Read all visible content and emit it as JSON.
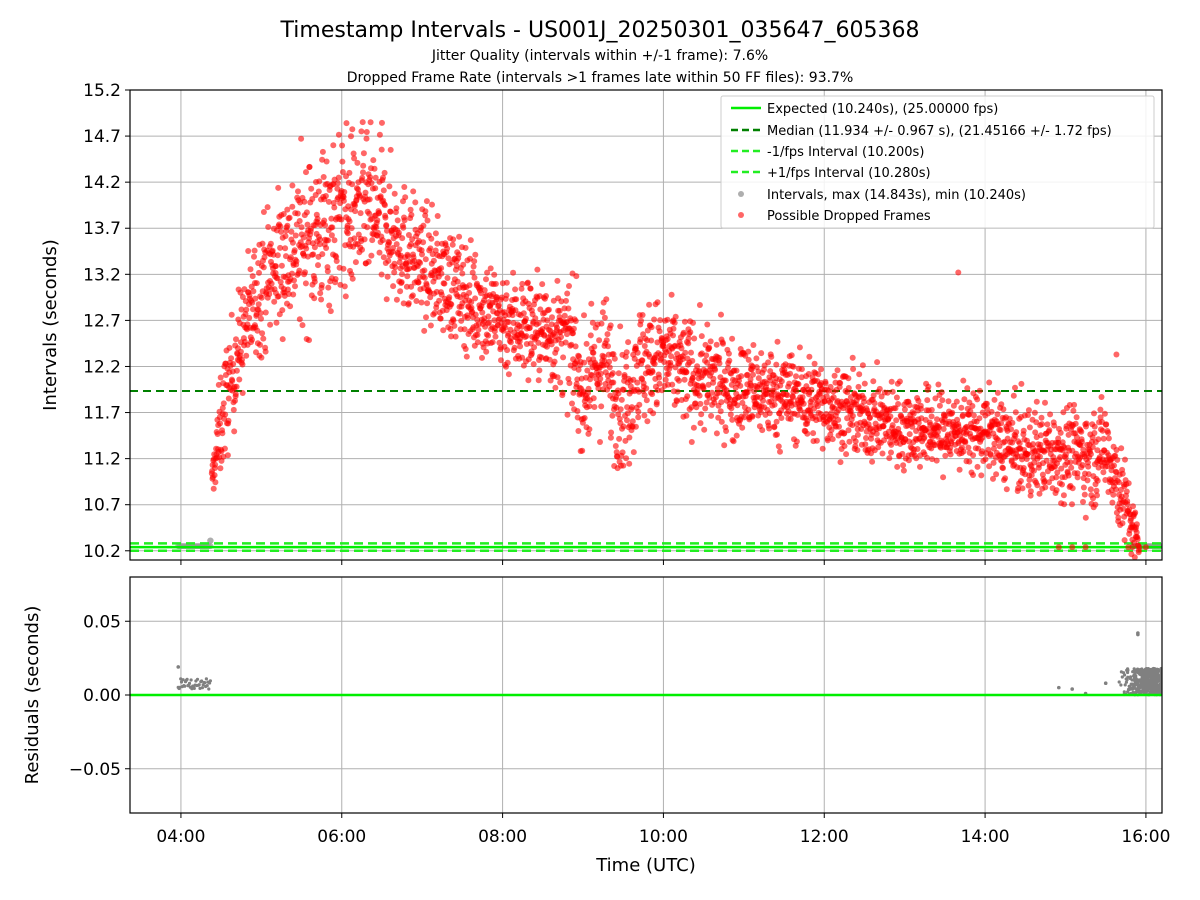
{
  "titles": {
    "main": "Timestamp Intervals - US001J_20250301_035647_605368",
    "sub1": "Jitter Quality (intervals within +/-1 frame): 7.6%",
    "sub2": "Dropped Frame Rate (intervals >1 frames late within 50 FF files): 93.7%"
  },
  "colors": {
    "expected": "#00ee00",
    "median": "#008000",
    "fps_interval": "#22ee22",
    "intervals": "#9a9a9a",
    "dropped": "#ff0000",
    "residuals": "#808080",
    "grid": "#b0b0b0"
  },
  "chart_data": [
    {
      "type": "scatter",
      "panel": "top",
      "ylabel": "Intervals (seconds)",
      "xlabel": "",
      "xlim": [
        "03:22",
        "16:12"
      ],
      "ylim": [
        10.1,
        15.2
      ],
      "yticks": [
        "10.2",
        "10.7",
        "11.2",
        "11.7",
        "12.2",
        "12.7",
        "13.2",
        "13.7",
        "14.2",
        "14.7",
        "15.2"
      ],
      "xticks": [
        "04:00",
        "06:00",
        "08:00",
        "10:00",
        "12:00",
        "14:00",
        "16:00"
      ],
      "grid": true,
      "legend_position": "top-right",
      "legend": [
        "Expected (10.240s), (25.00000 fps)",
        "Median (11.934 +/- 0.967 s), (21.45166 +/- 1.72 fps)",
        "-1/fps Interval (10.200s)",
        "+1/fps Interval (10.280s)",
        "Intervals, max (14.843s), min (10.240s)",
        "Possible Dropped Frames"
      ],
      "lines": {
        "expected": 10.24,
        "median": 11.934,
        "minus_fps": 10.2,
        "plus_fps": 10.28
      },
      "series": [
        {
          "name": "Possible Dropped Frames",
          "trend_x": [
            "04:23",
            "04:30",
            "04:45",
            "05:00",
            "05:20",
            "05:40",
            "06:00",
            "06:20",
            "06:40",
            "07:00",
            "07:30",
            "08:00",
            "08:30",
            "08:50",
            "09:00",
            "09:15",
            "09:30",
            "09:40",
            "10:00",
            "10:30",
            "11:00",
            "11:30",
            "12:00",
            "12:30",
            "13:00",
            "13:30",
            "14:00",
            "14:30",
            "15:00",
            "15:20",
            "15:30",
            "15:40",
            "15:50",
            "15:55"
          ],
          "trend_y": [
            10.95,
            11.6,
            12.5,
            13.1,
            13.45,
            13.65,
            13.85,
            13.9,
            13.6,
            13.3,
            13.0,
            12.7,
            12.6,
            12.45,
            11.9,
            12.3,
            11.7,
            12.2,
            12.3,
            12.05,
            11.95,
            11.9,
            11.8,
            11.65,
            11.55,
            11.5,
            11.5,
            11.25,
            11.3,
            11.2,
            11.35,
            10.9,
            10.45,
            10.25
          ],
          "spread": [
            0.08,
            0.3,
            0.3,
            0.35,
            0.4,
            0.45,
            0.45,
            0.4,
            0.35,
            0.3,
            0.28,
            0.28,
            0.28,
            0.3,
            0.3,
            0.35,
            0.35,
            0.35,
            0.3,
            0.28,
            0.25,
            0.25,
            0.22,
            0.22,
            0.22,
            0.22,
            0.22,
            0.25,
            0.25,
            0.25,
            0.25,
            0.25,
            0.2,
            0.05
          ],
          "outliers": [
            {
              "x": "06:30",
              "y": 14.843
            },
            {
              "x": "13:40",
              "y": 13.22
            },
            {
              "x": "15:38",
              "y": 12.33
            },
            {
              "x": "08:55",
              "y": 13.18
            },
            {
              "x": "14:55",
              "y": 10.24
            },
            {
              "x": "15:05",
              "y": 10.24
            },
            {
              "x": "15:15",
              "y": 10.24
            },
            {
              "x": "15:50",
              "y": 10.24
            },
            {
              "x": "15:55",
              "y": 10.24
            },
            {
              "x": "16:00",
              "y": 10.24
            }
          ]
        },
        {
          "name": "Intervals, max (14.843s), min (10.240s)",
          "segments": [
            {
              "x_start": "03:58",
              "x_end": "04:22",
              "y": 10.25
            },
            {
              "x_start": "15:50",
              "x_end": "16:12",
              "y": 10.25
            }
          ],
          "points": [
            {
              "x": "04:22",
              "y": 10.31
            }
          ]
        }
      ]
    },
    {
      "type": "scatter",
      "panel": "bottom",
      "ylabel": "Residuals (seconds)",
      "xlabel": "Time (UTC)",
      "xlim": [
        "03:22",
        "16:12"
      ],
      "ylim": [
        -0.08,
        0.08
      ],
      "yticks": [
        "−0.05",
        "0.00",
        "0.05"
      ],
      "ytick_values": [
        -0.05,
        0.0,
        0.05
      ],
      "xticks": [
        "04:00",
        "06:00",
        "08:00",
        "10:00",
        "12:00",
        "14:00",
        "16:00"
      ],
      "grid": true,
      "zero_line": 0.0,
      "series": [
        {
          "name": "residuals",
          "segments": [
            {
              "x_start": "03:58",
              "x_end": "04:22",
              "y_min": 0.004,
              "y_max": 0.011
            }
          ],
          "points": [
            {
              "x": "03:58",
              "y": 0.019
            },
            {
              "x": "14:55",
              "y": 0.005
            },
            {
              "x": "15:05",
              "y": 0.004
            },
            {
              "x": "15:15",
              "y": 0.001
            },
            {
              "x": "15:30",
              "y": 0.008
            },
            {
              "x": "15:54",
              "y": 0.042
            },
            {
              "x": "15:54",
              "y": 0.041
            }
          ],
          "cluster": {
            "x_start": "15:40",
            "x_end": "16:12",
            "y_min": 0.0,
            "y_max": 0.018
          }
        }
      ]
    }
  ]
}
